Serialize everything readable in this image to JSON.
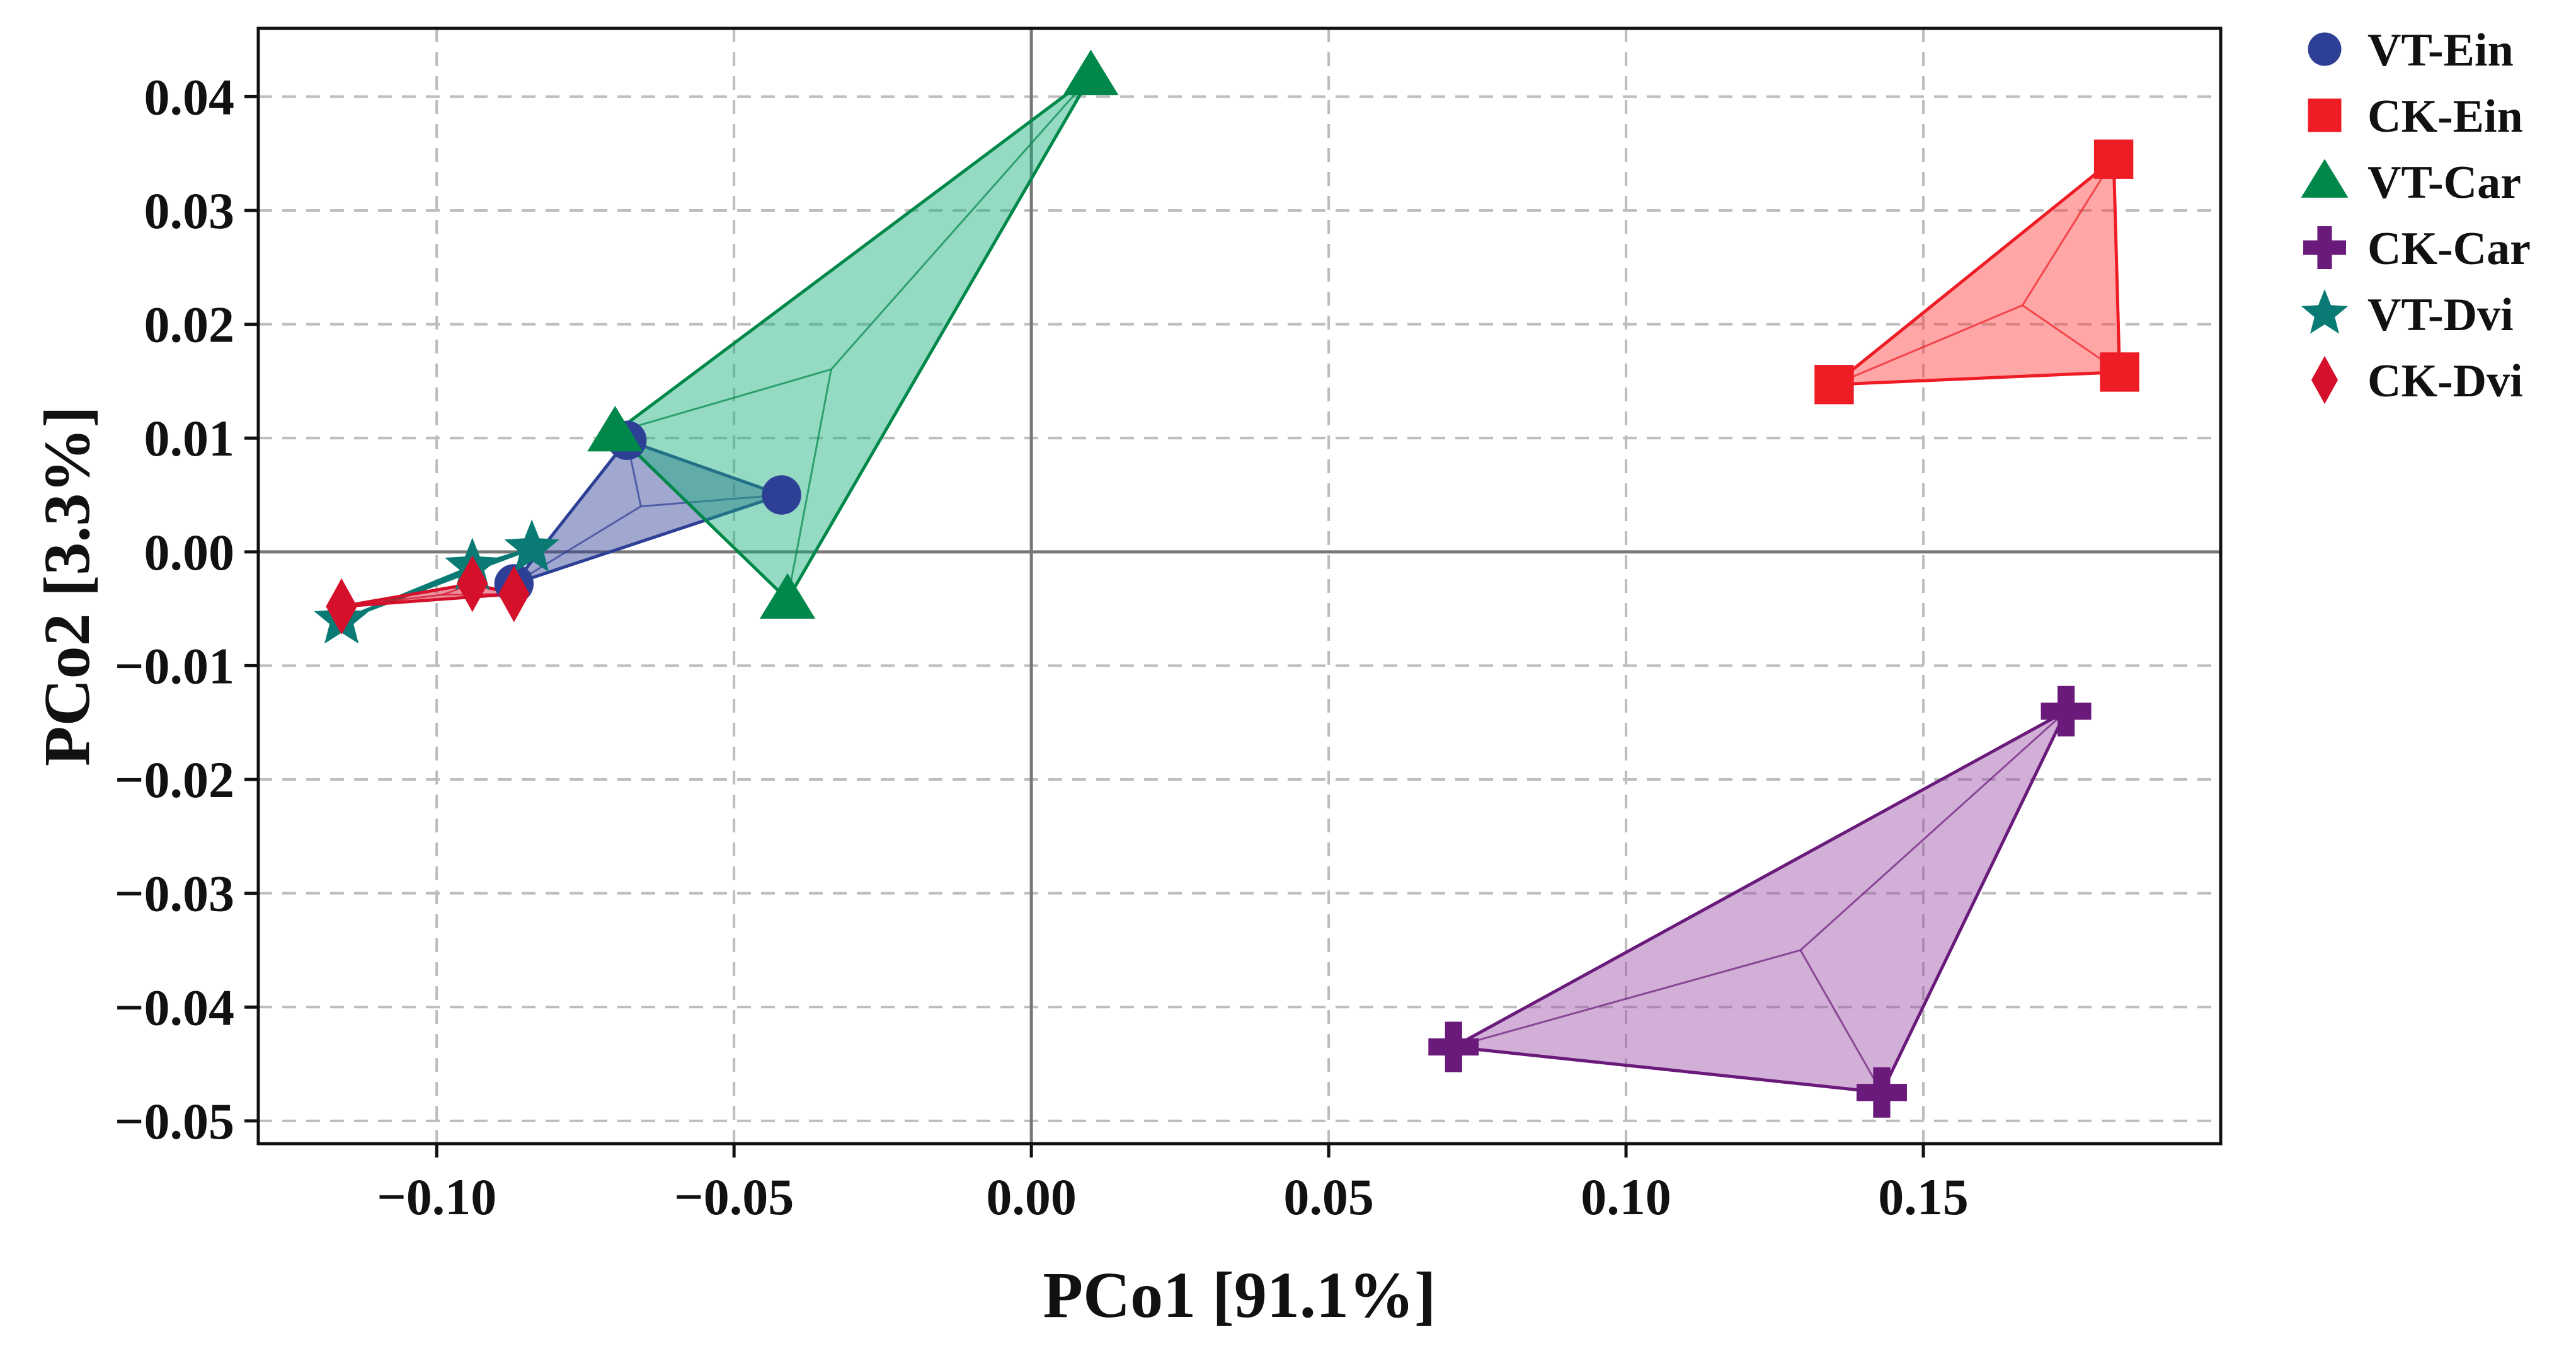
{
  "chart_data": {
    "type": "scatter",
    "title": "",
    "xlabel": "PCo1 [91.1%]",
    "ylabel": "PCo2 [3.3%]",
    "xlim": [
      -0.13,
      0.2
    ],
    "ylim": [
      -0.052,
      0.046
    ],
    "xticks": [
      -0.1,
      -0.05,
      0.0,
      0.05,
      0.1,
      0.15
    ],
    "xtick_labels": [
      "−0.10",
      "−0.05",
      "0.00",
      "0.05",
      "0.10",
      "0.15"
    ],
    "yticks": [
      0.04,
      0.03,
      0.02,
      0.01,
      0.0,
      -0.01,
      -0.02,
      -0.03,
      -0.04,
      -0.05
    ],
    "ytick_labels": [
      "0.04",
      "0.03",
      "0.02",
      "0.01",
      "0.00",
      "−0.01",
      "−0.02",
      "−0.03",
      "−0.04",
      "−0.05"
    ],
    "grid": true,
    "grid_style": "dashed",
    "zero_lines": true,
    "legend_position": "right-top-outside",
    "series": [
      {
        "name": "VT-Ein",
        "marker": "circle",
        "color": "#2e3f96",
        "fill": "#2e3f96",
        "points": [
          {
            "x": -0.068,
            "y": 0.0098
          },
          {
            "x": -0.042,
            "y": 0.005
          },
          {
            "x": -0.087,
            "y": -0.0028
          }
        ]
      },
      {
        "name": "CK-Ein",
        "marker": "square",
        "color": "#ee1c25",
        "fill": "#ff3a3a",
        "points": [
          {
            "x": 0.182,
            "y": 0.0345
          },
          {
            "x": 0.135,
            "y": 0.0147
          },
          {
            "x": 0.183,
            "y": 0.0158
          }
        ]
      },
      {
        "name": "VT-Car",
        "marker": "triangle",
        "color": "#00884a",
        "fill": "#14b07a",
        "points": [
          {
            "x": 0.01,
            "y": 0.0418
          },
          {
            "x": -0.07,
            "y": 0.0105
          },
          {
            "x": -0.041,
            "y": -0.0042
          }
        ]
      },
      {
        "name": "CK-Car",
        "marker": "plus",
        "color": "#6a1a7a",
        "fill": "#9b4ea6",
        "points": [
          {
            "x": 0.174,
            "y": -0.014
          },
          {
            "x": 0.071,
            "y": -0.0435
          },
          {
            "x": 0.143,
            "y": -0.0475
          }
        ]
      },
      {
        "name": "VT-Dvi",
        "marker": "star",
        "color": "#0a7b74",
        "fill": "#0a7b74",
        "points": [
          {
            "x": -0.116,
            "y": -0.006
          },
          {
            "x": -0.094,
            "y": -0.0013
          },
          {
            "x": -0.084,
            "y": 0.0003
          }
        ]
      },
      {
        "name": "CK-Dvi",
        "marker": "diamond",
        "color": "#d4102a",
        "fill": "#d4102a",
        "points": [
          {
            "x": -0.116,
            "y": -0.0048
          },
          {
            "x": -0.094,
            "y": -0.0028
          },
          {
            "x": -0.087,
            "y": -0.0037
          }
        ]
      }
    ]
  }
}
